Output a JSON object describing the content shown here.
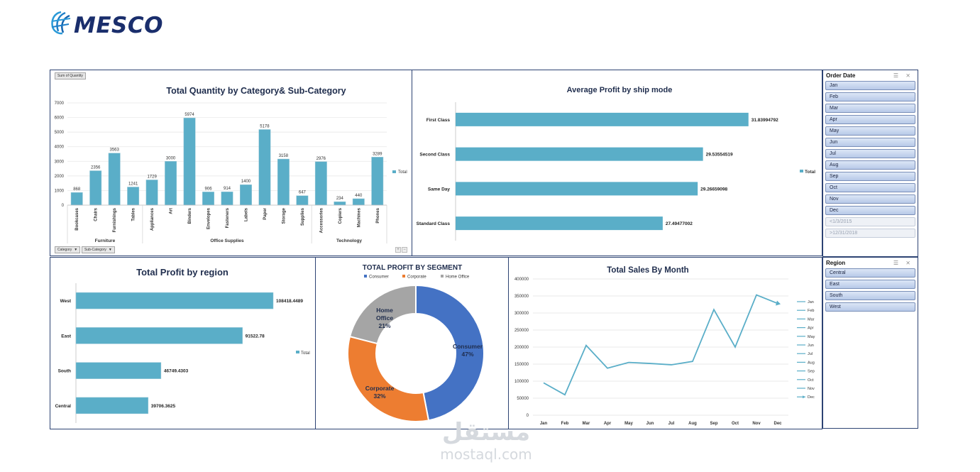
{
  "logo": {
    "text": "MESCO",
    "icon": "globe-icon",
    "color": "#1a2e6c"
  },
  "watermark": {
    "arabic": "مستقل",
    "latin": "mostaql.com"
  },
  "colors": {
    "bar": "#5aaec8",
    "consumer": "#4472c4",
    "corporate": "#ed7d31",
    "home_office": "#a5a5a5",
    "line": "#5aaec8"
  },
  "qty_chart": {
    "pivot_label": "Sum of Quantity",
    "field_buttons": [
      "Category",
      "Sub-Category"
    ],
    "legend": "Total",
    "chart_data": {
      "type": "bar",
      "title": "Total Quantity by Category& Sub-Category",
      "ylim": [
        0,
        7000
      ],
      "yticks": [
        "0",
        "1000",
        "2000",
        "3000",
        "4000",
        "5000",
        "6000",
        "7000"
      ],
      "groups": [
        {
          "name": "Furniture",
          "start": 0,
          "end": 3
        },
        {
          "name": "Office Supplies",
          "start": 4,
          "end": 12
        },
        {
          "name": "Technology",
          "start": 13,
          "end": 16
        }
      ],
      "categories": [
        "Bookcases",
        "Chairs",
        "Furnishings",
        "Tables",
        "Appliances",
        "Art",
        "Binders",
        "Envelopes",
        "Fasteners",
        "Labels",
        "Paper",
        "Storage",
        "Supplies",
        "Accessories",
        "Copiers",
        "Machines",
        "Phones"
      ],
      "values": [
        868,
        2356,
        3563,
        1241,
        1729,
        3000,
        5974,
        906,
        914,
        1400,
        5178,
        3158,
        647,
        2976,
        234,
        440,
        3289
      ],
      "labels": [
        "868",
        "2356",
        "3563",
        "1241",
        "1729",
        "3000",
        "5974",
        "906",
        "914",
        "1400",
        "5178",
        "3158",
        "647",
        "2976",
        "234",
        "440",
        "3289"
      ]
    }
  },
  "ship_chart": {
    "legend": "Total",
    "chart_data": {
      "type": "bar",
      "orientation": "horizontal",
      "title": "Average Profit by ship mode",
      "categories": [
        "First Class",
        "Second Class",
        "Same Day",
        "Standard Class"
      ],
      "values": [
        31.83994792,
        29.53554519,
        29.26659098,
        27.49477002
      ],
      "labels": [
        "31.83994792",
        "29.53554519",
        "29.26659098",
        "27.49477002"
      ],
      "xlim": [
        17,
        33
      ]
    }
  },
  "region_chart": {
    "legend": "Total",
    "chart_data": {
      "type": "bar",
      "orientation": "horizontal",
      "title": "Total Profit by region",
      "categories": [
        "West",
        "East",
        "South",
        "Central"
      ],
      "values": [
        108418.4489,
        91522.78,
        46749.4303,
        39706.3625
      ],
      "labels": [
        "108418.4489",
        "91522.78",
        "46749.4303",
        "39706.3625"
      ],
      "xlim": [
        0,
        117000
      ]
    }
  },
  "segment_chart": {
    "chart_data": {
      "type": "pie",
      "title": "TOTAL PROFIT BY SEGMENT",
      "categories": [
        "Consumer",
        "Corporate",
        "Home Office"
      ],
      "values": [
        47,
        32,
        21
      ],
      "percent_labels": [
        "47%",
        "32%",
        "21%"
      ],
      "legend": [
        "Consumer",
        "Corporate",
        "Home Office"
      ],
      "slice_names": [
        [
          "Consumer"
        ],
        [
          "Corporate"
        ],
        [
          "Home",
          "Office"
        ]
      ]
    }
  },
  "sales_chart": {
    "chart_data": {
      "type": "line",
      "title": "Total Sales By Month",
      "categories": [
        "Jan",
        "Feb",
        "Mar",
        "Apr",
        "May",
        "Jun",
        "Jul",
        "Aug",
        "Sep",
        "Oct",
        "Nov",
        "Dec"
      ],
      "values": [
        95000,
        60000,
        205000,
        138000,
        155000,
        152000,
        148000,
        158000,
        310000,
        200000,
        353000,
        328000
      ],
      "ylim": [
        0,
        400000
      ],
      "yticks": [
        "0",
        "50000",
        "100000",
        "150000",
        "200000",
        "250000",
        "300000",
        "350000",
        "400000"
      ],
      "legend": [
        "Jan",
        "Feb",
        "Mar",
        "Apr",
        "May",
        "Jun",
        "Jul",
        "Aug",
        "Sep",
        "Oct",
        "Nov",
        "Dec"
      ]
    }
  },
  "order_date_slicer": {
    "title": "Order Date",
    "items": [
      "Jan",
      "Feb",
      "Mar",
      "Apr",
      "May",
      "Jun",
      "Jul",
      "Aug",
      "Sep",
      "Oct",
      "Nov",
      "Dec"
    ],
    "disabled_items": [
      "<1/3/2015",
      ">12/31/2018"
    ]
  },
  "region_slicer": {
    "title": "Region",
    "items": [
      "Central",
      "East",
      "South",
      "West"
    ]
  }
}
